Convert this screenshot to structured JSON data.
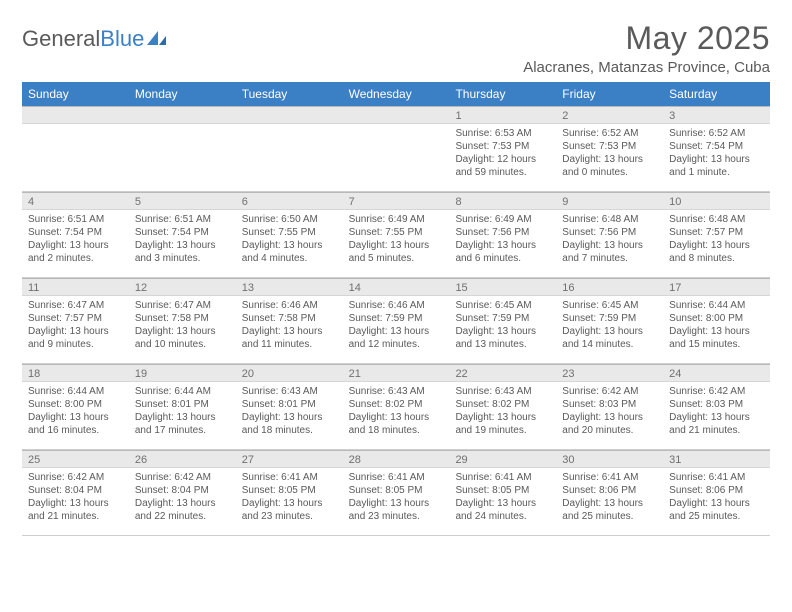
{
  "logo": {
    "part1": "General",
    "part2": "Blue"
  },
  "title": "May 2025",
  "location": "Alacranes, Matanzas Province, Cuba",
  "colors": {
    "header_bg": "#3b7fc4",
    "header_text": "#ffffff",
    "daynum_bg": "#e9e9e9",
    "daynum_border": "#b9b9b9",
    "text": "#5a5a5a",
    "page_bg": "#ffffff"
  },
  "fonts": {
    "title_size": 32,
    "location_size": 15,
    "dayhead_size": 12,
    "daynum_size": 11,
    "body_size": 10
  },
  "day_names": [
    "Sunday",
    "Monday",
    "Tuesday",
    "Wednesday",
    "Thursday",
    "Friday",
    "Saturday"
  ],
  "weeks": [
    [
      {
        "n": "",
        "lines": []
      },
      {
        "n": "",
        "lines": []
      },
      {
        "n": "",
        "lines": []
      },
      {
        "n": "",
        "lines": []
      },
      {
        "n": "1",
        "lines": [
          "Sunrise: 6:53 AM",
          "Sunset: 7:53 PM",
          "Daylight: 12 hours",
          "and 59 minutes."
        ]
      },
      {
        "n": "2",
        "lines": [
          "Sunrise: 6:52 AM",
          "Sunset: 7:53 PM",
          "Daylight: 13 hours",
          "and 0 minutes."
        ]
      },
      {
        "n": "3",
        "lines": [
          "Sunrise: 6:52 AM",
          "Sunset: 7:54 PM",
          "Daylight: 13 hours",
          "and 1 minute."
        ]
      }
    ],
    [
      {
        "n": "4",
        "lines": [
          "Sunrise: 6:51 AM",
          "Sunset: 7:54 PM",
          "Daylight: 13 hours",
          "and 2 minutes."
        ]
      },
      {
        "n": "5",
        "lines": [
          "Sunrise: 6:51 AM",
          "Sunset: 7:54 PM",
          "Daylight: 13 hours",
          "and 3 minutes."
        ]
      },
      {
        "n": "6",
        "lines": [
          "Sunrise: 6:50 AM",
          "Sunset: 7:55 PM",
          "Daylight: 13 hours",
          "and 4 minutes."
        ]
      },
      {
        "n": "7",
        "lines": [
          "Sunrise: 6:49 AM",
          "Sunset: 7:55 PM",
          "Daylight: 13 hours",
          "and 5 minutes."
        ]
      },
      {
        "n": "8",
        "lines": [
          "Sunrise: 6:49 AM",
          "Sunset: 7:56 PM",
          "Daylight: 13 hours",
          "and 6 minutes."
        ]
      },
      {
        "n": "9",
        "lines": [
          "Sunrise: 6:48 AM",
          "Sunset: 7:56 PM",
          "Daylight: 13 hours",
          "and 7 minutes."
        ]
      },
      {
        "n": "10",
        "lines": [
          "Sunrise: 6:48 AM",
          "Sunset: 7:57 PM",
          "Daylight: 13 hours",
          "and 8 minutes."
        ]
      }
    ],
    [
      {
        "n": "11",
        "lines": [
          "Sunrise: 6:47 AM",
          "Sunset: 7:57 PM",
          "Daylight: 13 hours",
          "and 9 minutes."
        ]
      },
      {
        "n": "12",
        "lines": [
          "Sunrise: 6:47 AM",
          "Sunset: 7:58 PM",
          "Daylight: 13 hours",
          "and 10 minutes."
        ]
      },
      {
        "n": "13",
        "lines": [
          "Sunrise: 6:46 AM",
          "Sunset: 7:58 PM",
          "Daylight: 13 hours",
          "and 11 minutes."
        ]
      },
      {
        "n": "14",
        "lines": [
          "Sunrise: 6:46 AM",
          "Sunset: 7:59 PM",
          "Daylight: 13 hours",
          "and 12 minutes."
        ]
      },
      {
        "n": "15",
        "lines": [
          "Sunrise: 6:45 AM",
          "Sunset: 7:59 PM",
          "Daylight: 13 hours",
          "and 13 minutes."
        ]
      },
      {
        "n": "16",
        "lines": [
          "Sunrise: 6:45 AM",
          "Sunset: 7:59 PM",
          "Daylight: 13 hours",
          "and 14 minutes."
        ]
      },
      {
        "n": "17",
        "lines": [
          "Sunrise: 6:44 AM",
          "Sunset: 8:00 PM",
          "Daylight: 13 hours",
          "and 15 minutes."
        ]
      }
    ],
    [
      {
        "n": "18",
        "lines": [
          "Sunrise: 6:44 AM",
          "Sunset: 8:00 PM",
          "Daylight: 13 hours",
          "and 16 minutes."
        ]
      },
      {
        "n": "19",
        "lines": [
          "Sunrise: 6:44 AM",
          "Sunset: 8:01 PM",
          "Daylight: 13 hours",
          "and 17 minutes."
        ]
      },
      {
        "n": "20",
        "lines": [
          "Sunrise: 6:43 AM",
          "Sunset: 8:01 PM",
          "Daylight: 13 hours",
          "and 18 minutes."
        ]
      },
      {
        "n": "21",
        "lines": [
          "Sunrise: 6:43 AM",
          "Sunset: 8:02 PM",
          "Daylight: 13 hours",
          "and 18 minutes."
        ]
      },
      {
        "n": "22",
        "lines": [
          "Sunrise: 6:43 AM",
          "Sunset: 8:02 PM",
          "Daylight: 13 hours",
          "and 19 minutes."
        ]
      },
      {
        "n": "23",
        "lines": [
          "Sunrise: 6:42 AM",
          "Sunset: 8:03 PM",
          "Daylight: 13 hours",
          "and 20 minutes."
        ]
      },
      {
        "n": "24",
        "lines": [
          "Sunrise: 6:42 AM",
          "Sunset: 8:03 PM",
          "Daylight: 13 hours",
          "and 21 minutes."
        ]
      }
    ],
    [
      {
        "n": "25",
        "lines": [
          "Sunrise: 6:42 AM",
          "Sunset: 8:04 PM",
          "Daylight: 13 hours",
          "and 21 minutes."
        ]
      },
      {
        "n": "26",
        "lines": [
          "Sunrise: 6:42 AM",
          "Sunset: 8:04 PM",
          "Daylight: 13 hours",
          "and 22 minutes."
        ]
      },
      {
        "n": "27",
        "lines": [
          "Sunrise: 6:41 AM",
          "Sunset: 8:05 PM",
          "Daylight: 13 hours",
          "and 23 minutes."
        ]
      },
      {
        "n": "28",
        "lines": [
          "Sunrise: 6:41 AM",
          "Sunset: 8:05 PM",
          "Daylight: 13 hours",
          "and 23 minutes."
        ]
      },
      {
        "n": "29",
        "lines": [
          "Sunrise: 6:41 AM",
          "Sunset: 8:05 PM",
          "Daylight: 13 hours",
          "and 24 minutes."
        ]
      },
      {
        "n": "30",
        "lines": [
          "Sunrise: 6:41 AM",
          "Sunset: 8:06 PM",
          "Daylight: 13 hours",
          "and 25 minutes."
        ]
      },
      {
        "n": "31",
        "lines": [
          "Sunrise: 6:41 AM",
          "Sunset: 8:06 PM",
          "Daylight: 13 hours",
          "and 25 minutes."
        ]
      }
    ]
  ]
}
